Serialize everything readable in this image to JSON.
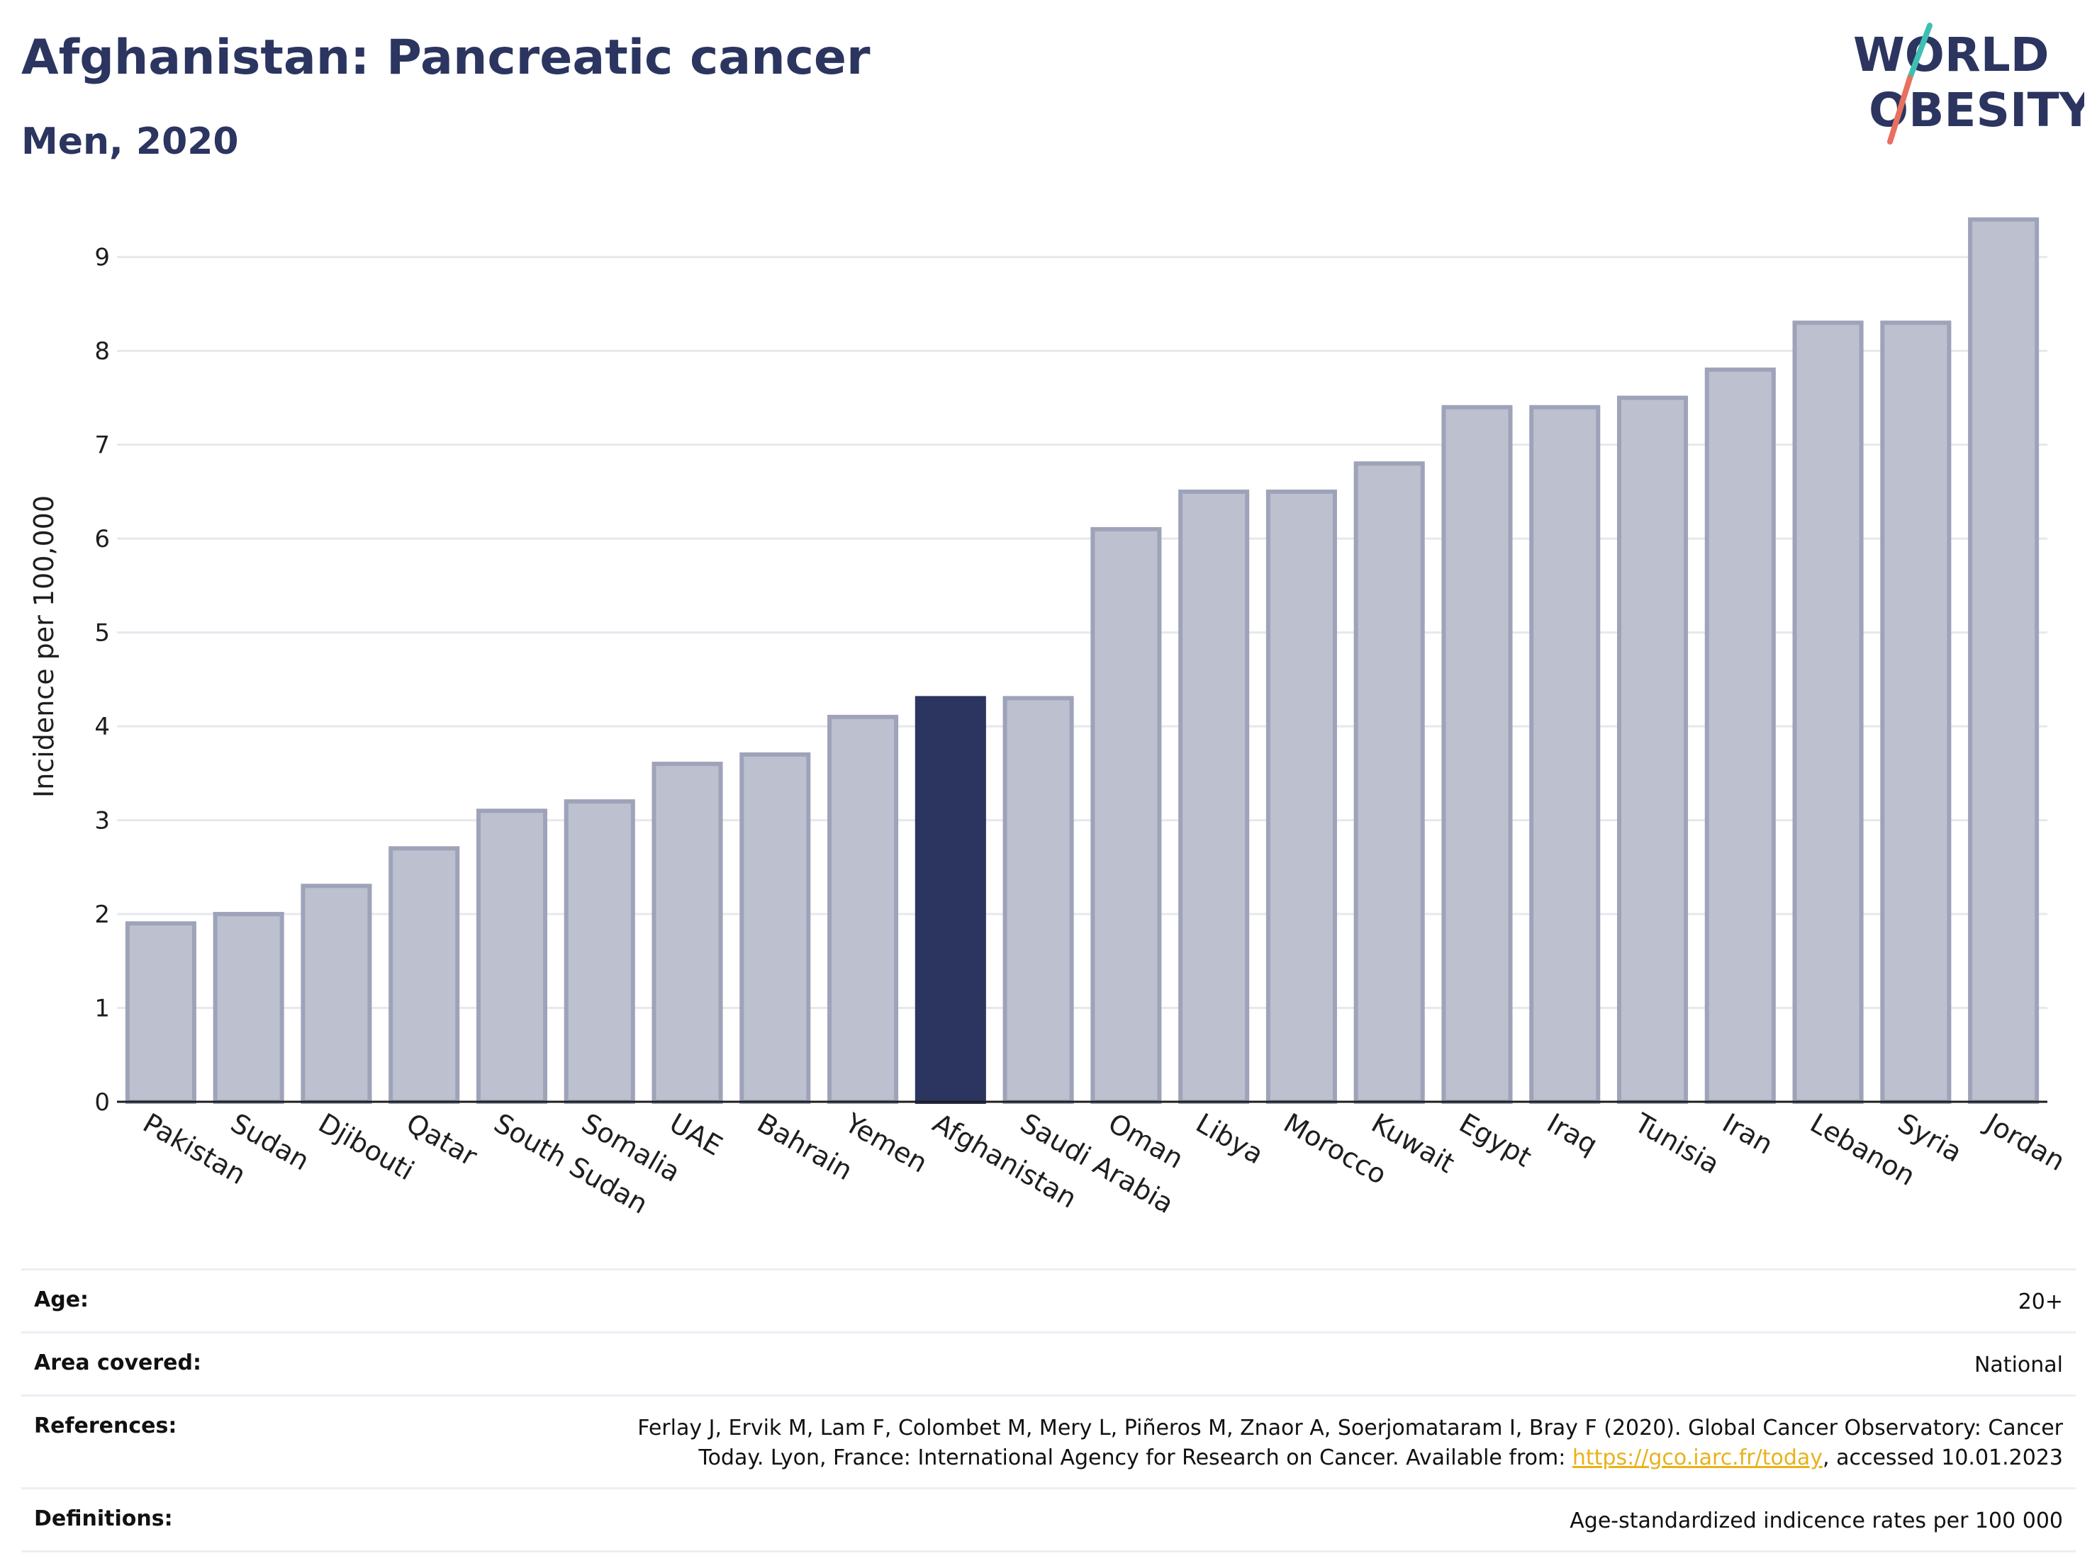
{
  "header": {
    "title": "Afghanistan: Pancreatic cancer",
    "subtitle": "Men, 2020",
    "logo_line1": "WORLD",
    "logo_line2": "OBESITY"
  },
  "colors": {
    "bar": "#bcc0cf",
    "bar_border": "#9ea3b9",
    "highlight": "#2b3560",
    "grid": "#e6e8ee",
    "logo_teal": "#3fbfb3",
    "logo_coral": "#e8705f"
  },
  "chart_data": {
    "type": "bar",
    "title": "Afghanistan: Pancreatic cancer",
    "subtitle": "Men, 2020",
    "xlabel": "",
    "ylabel": "Incidence per 100,000",
    "ylim": [
      0,
      9.7
    ],
    "yticks": [
      0,
      1,
      2,
      3,
      4,
      5,
      6,
      7,
      8,
      9
    ],
    "grid": true,
    "highlight": "Afghanistan",
    "categories": [
      "Pakistan",
      "Sudan",
      "Djibouti",
      "Qatar",
      "South Sudan",
      "Somalia",
      "UAE",
      "Bahrain",
      "Yemen",
      "Afghanistan",
      "Saudi Arabia",
      "Oman",
      "Libya",
      "Morocco",
      "Kuwait",
      "Egypt",
      "Iraq",
      "Tunisia",
      "Iran",
      "Lebanon",
      "Syria",
      "Jordan"
    ],
    "values": [
      1.9,
      2.0,
      2.3,
      2.7,
      3.1,
      3.2,
      3.6,
      3.7,
      4.1,
      4.3,
      4.3,
      6.1,
      6.5,
      6.5,
      6.8,
      7.4,
      7.4,
      7.5,
      7.8,
      8.3,
      8.3,
      9.4
    ]
  },
  "info": {
    "age_label": "Age:",
    "age_value": "20+",
    "area_label": "Area covered:",
    "area_value": "National",
    "references_label": "References:",
    "references_line1": "Ferlay J, Ervik M, Lam F, Colombet M, Mery L, Piñeros M, Znaor A, Soerjomataram I, Bray F (2020). Global Cancer Observatory: Cancer",
    "references_line2_pre": "Today. Lyon, France: International Agency for Research on Cancer. Available from: ",
    "references_link": "https://gco.iarc.fr/today",
    "references_line2_post": ", accessed 10.01.2023",
    "definitions_label": "Definitions:",
    "definitions_value": "Age-standardized indicence rates per 100 000"
  }
}
